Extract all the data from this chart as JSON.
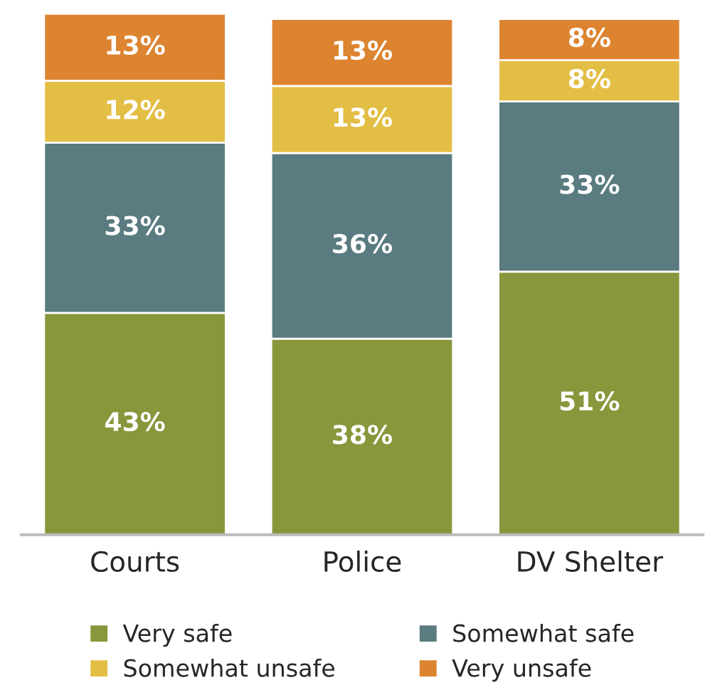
{
  "chart_data": {
    "type": "bar",
    "stacked": true,
    "legend": "bottom",
    "grid": false,
    "categories": [
      "Courts",
      "Police",
      "DV Shelter"
    ],
    "series": [
      {
        "name": "Very safe",
        "color": "#8a963c",
        "values": [
          43,
          38,
          51
        ],
        "value_labels": [
          "43%",
          "38%",
          "51%"
        ]
      },
      {
        "name": "Somewhat safe",
        "color": "#5a7b7f",
        "values": [
          33,
          36,
          33
        ],
        "value_labels": [
          "33%",
          "36%",
          "33%"
        ]
      },
      {
        "name": "Somewhat unsafe",
        "color": "#e3be45",
        "values": [
          12,
          13,
          8
        ],
        "value_labels": [
          "12%",
          "13%",
          "8%"
        ]
      },
      {
        "name": "Very unsafe",
        "color": "#dd8430",
        "values": [
          13,
          13,
          8
        ],
        "value_labels": [
          "13%",
          "13%",
          "8%"
        ]
      }
    ]
  }
}
